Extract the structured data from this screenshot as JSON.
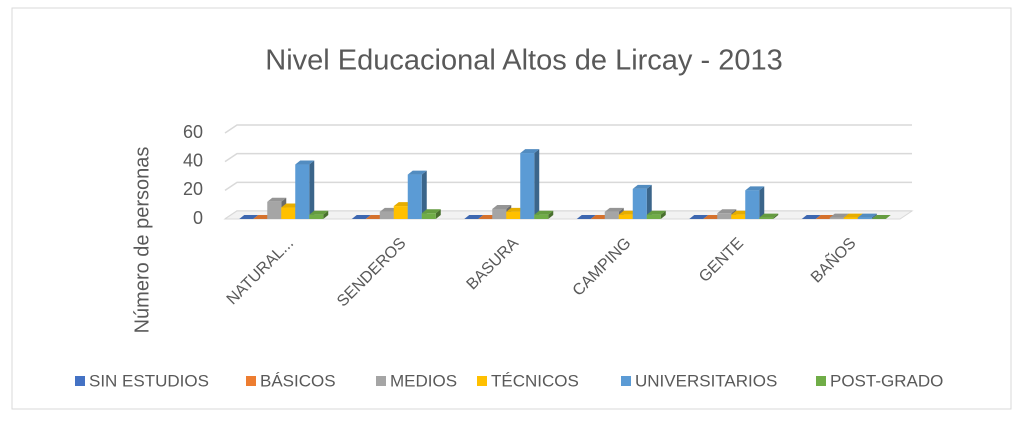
{
  "chart_data": {
    "type": "bar3d",
    "title": "Nivel Educacional Altos de Lircay - 2013",
    "y_label": "Número de personas",
    "categories": [
      "NATURAL...",
      "SENDEROS",
      "BASURA",
      "CAMPING",
      "GENTE",
      "BAÑOS"
    ],
    "series": [
      {
        "name": "SIN ESTUDIOS",
        "color": "#4472c4",
        "values": [
          0,
          0,
          0,
          0,
          0,
          0
        ]
      },
      {
        "name": "BÁSICOS",
        "color": "#ed7d31",
        "values": [
          0,
          0,
          0,
          0,
          0,
          0
        ]
      },
      {
        "name": "MEDIOS",
        "color": "#a5a5a5",
        "values": [
          12,
          5,
          7,
          5,
          4,
          1
        ]
      },
      {
        "name": "TÉCNICOS",
        "color": "#ffc000",
        "values": [
          8,
          9,
          5,
          3,
          3,
          1
        ]
      },
      {
        "name": "UNIVERSITARIOS",
        "color": "#5b9bd5",
        "values": [
          38,
          31,
          46,
          21,
          20,
          1
        ]
      },
      {
        "name": "POST-GRADO",
        "color": "#70ad47",
        "values": [
          3,
          4,
          3,
          3,
          1,
          0
        ]
      }
    ],
    "ylim": [
      0,
      60
    ],
    "yticks": [
      0,
      20,
      40,
      60
    ],
    "grid": true,
    "legend": "bottom"
  }
}
